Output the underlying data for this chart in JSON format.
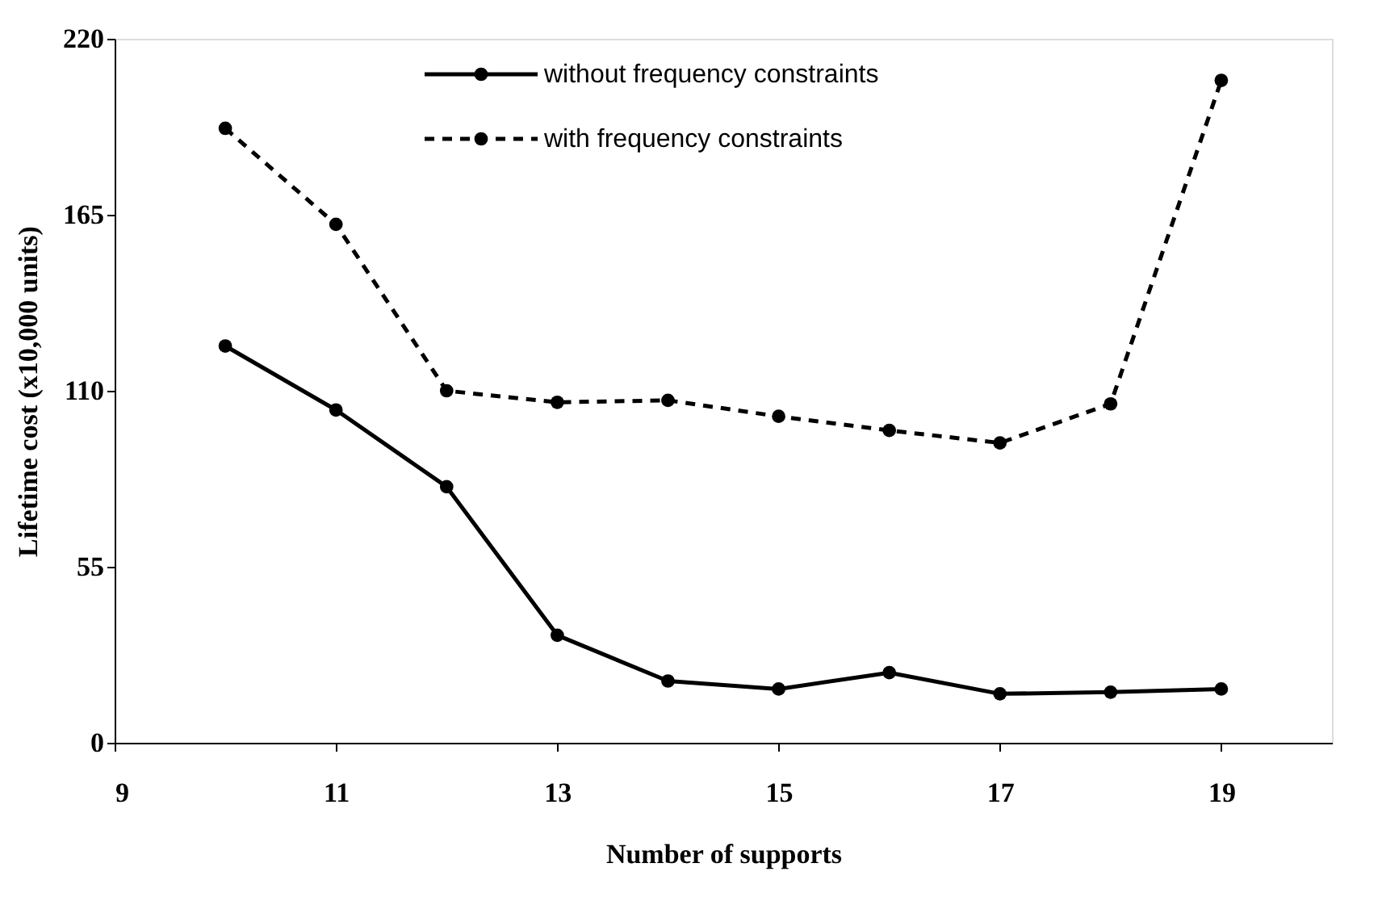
{
  "chart_data": {
    "type": "line",
    "xlabel": "Number of supports",
    "ylabel": "Lifetime cost (x10,000 units)",
    "x": [
      10,
      11,
      12,
      13,
      14,
      15,
      16,
      17,
      18,
      19
    ],
    "series": [
      {
        "name": "without frequency constraints",
        "color": "#000000",
        "line_style": "solid",
        "values": [
          124,
          104,
          80,
          33.6,
          19.3,
          16.8,
          21.9,
          15.3,
          15.8,
          16.8
        ]
      },
      {
        "name": "with frequency constraints",
        "color": "#000000",
        "line_style": "dashed",
        "values": [
          192,
          162,
          110,
          106.4,
          107,
          102,
          97.6,
          93.7,
          105.9,
          207
        ]
      }
    ],
    "xlim": [
      9,
      20
    ],
    "xticks": [
      9,
      11,
      13,
      15,
      17,
      19
    ],
    "ylim": [
      0,
      220
    ],
    "yticks": [
      0,
      55,
      110,
      165,
      220
    ],
    "grid": false,
    "legend": "top",
    "marker": "circle"
  }
}
